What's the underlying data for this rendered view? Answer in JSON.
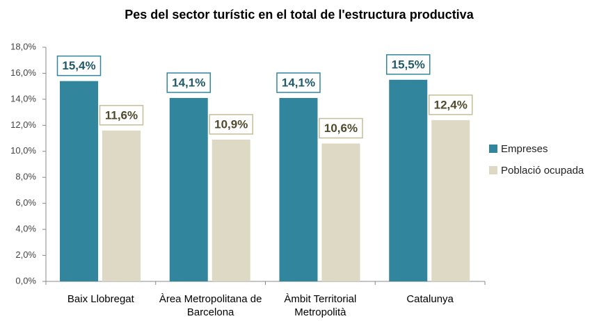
{
  "chart_data": {
    "type": "bar",
    "title": "Pes del sector turístic en el total de l'estructura productiva",
    "categories": [
      "Baix Llobregat",
      "Àrea Metropolitana de Barcelona",
      "Àmbit Territorial Metropolità",
      "Catalunya"
    ],
    "series": [
      {
        "name": "Empreses",
        "color": "#31859c",
        "values": [
          15.4,
          14.1,
          14.1,
          15.5
        ],
        "value_labels": [
          "15,4%",
          "14,1%",
          "14,1%",
          "15,5%"
        ]
      },
      {
        "name": "Població ocupada",
        "color": "#ddd9c4",
        "values": [
          11.6,
          10.9,
          10.6,
          12.4
        ],
        "value_labels": [
          "11,6%",
          "10,9%",
          "10,6%",
          "12,4%"
        ]
      }
    ],
    "ylim": [
      0,
      18
    ],
    "yticks": [
      {
        "value": 0,
        "label": "0,0%"
      },
      {
        "value": 2,
        "label": "2,0%"
      },
      {
        "value": 4,
        "label": "4,0%"
      },
      {
        "value": 6,
        "label": "6,0%"
      },
      {
        "value": 8,
        "label": "8,0%"
      },
      {
        "value": 10,
        "label": "10,0%"
      },
      {
        "value": 12,
        "label": "12,0%"
      },
      {
        "value": 14,
        "label": "14,0%"
      },
      {
        "value": 16,
        "label": "16,0%"
      },
      {
        "value": 18,
        "label": "18,0%"
      }
    ],
    "legend": "right"
  }
}
